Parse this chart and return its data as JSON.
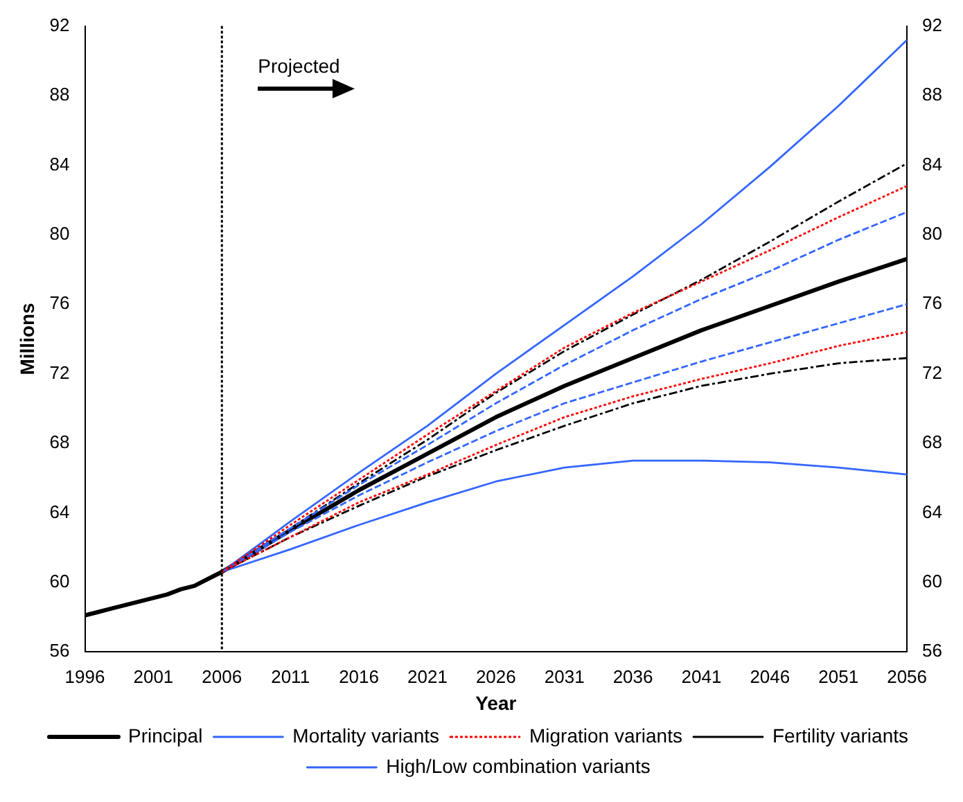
{
  "chart_data": {
    "type": "line",
    "xlabel": "Year",
    "ylabel": "Millions",
    "xlim": [
      1996,
      2056
    ],
    "xticks": [
      1996,
      2001,
      2006,
      2011,
      2016,
      2021,
      2026,
      2031,
      2036,
      2041,
      2046,
      2051,
      2056
    ],
    "ylim": [
      56,
      92
    ],
    "yticks": [
      56,
      60,
      64,
      68,
      72,
      76,
      80,
      84,
      88,
      92
    ],
    "y2lim": [
      56,
      92
    ],
    "y2ticks": [
      56,
      60,
      64,
      68,
      72,
      76,
      80,
      84,
      88,
      92
    ],
    "grid": false,
    "legend": "bottom",
    "marker": "none",
    "ref_lines": [
      {
        "axis": "x",
        "value": 2006,
        "label": "Projected",
        "color": "#000000",
        "line_style": "dotted"
      }
    ],
    "series": [
      {
        "name": "Principal",
        "color": "#000000",
        "line_style": "solid",
        "x": [
          1996,
          1997,
          1998,
          1999,
          2000,
          2001,
          2002,
          2003,
          2004,
          2005,
          2006,
          2011,
          2016,
          2021,
          2026,
          2031,
          2036,
          2041,
          2046,
          2051,
          2056
        ],
        "values": [
          58.1,
          58.3,
          58.5,
          58.7,
          58.9,
          59.1,
          59.3,
          59.6,
          59.8,
          60.2,
          60.6,
          63.0,
          65.3,
          67.4,
          69.5,
          71.3,
          72.9,
          74.5,
          75.9,
          77.3,
          78.6
        ]
      },
      {
        "name": "Mortality variants",
        "color": "#3366ff",
        "line_style": "dashed",
        "x": [
          2006,
          2011,
          2016,
          2021,
          2026,
          2031,
          2036,
          2041,
          2046,
          2051,
          2056
        ],
        "values": [
          60.6,
          63.1,
          65.6,
          67.9,
          70.3,
          72.5,
          74.5,
          76.3,
          77.9,
          79.7,
          81.3
        ]
      },
      {
        "color": "#3366ff",
        "line_style": "dashed",
        "x": [
          2006,
          2011,
          2016,
          2021,
          2026,
          2031,
          2036,
          2041,
          2046,
          2051,
          2056
        ],
        "values": [
          60.6,
          62.9,
          65.0,
          66.9,
          68.7,
          70.3,
          71.5,
          72.7,
          73.8,
          74.9,
          76.0
        ]
      },
      {
        "name": "Migration variants",
        "color": "#ff0000",
        "line_style": "dotted",
        "x": [
          2006,
          2011,
          2016,
          2021,
          2026,
          2031,
          2036,
          2041,
          2046,
          2051,
          2056
        ],
        "values": [
          60.6,
          63.3,
          65.9,
          68.5,
          71.0,
          73.5,
          75.5,
          77.3,
          79.1,
          81.0,
          82.8
        ]
      },
      {
        "color": "#ff0000",
        "line_style": "dotted",
        "x": [
          2006,
          2011,
          2016,
          2021,
          2026,
          2031,
          2036,
          2041,
          2046,
          2051,
          2056
        ],
        "values": [
          60.6,
          62.6,
          64.6,
          66.2,
          67.9,
          69.5,
          70.7,
          71.7,
          72.6,
          73.6,
          74.4
        ]
      },
      {
        "name": "Fertility variants",
        "color": "#000000",
        "line_style": "dashdot",
        "x": [
          2006,
          2011,
          2016,
          2021,
          2026,
          2031,
          2036,
          2041,
          2046,
          2051,
          2056
        ],
        "values": [
          60.6,
          63.1,
          65.7,
          68.2,
          70.9,
          73.3,
          75.4,
          77.4,
          79.6,
          81.9,
          84.1
        ]
      },
      {
        "color": "#000000",
        "line_style": "dashdot",
        "x": [
          2006,
          2011,
          2016,
          2021,
          2026,
          2031,
          2036,
          2041,
          2046,
          2051,
          2056
        ],
        "values": [
          60.6,
          62.6,
          64.4,
          66.1,
          67.6,
          69.0,
          70.3,
          71.3,
          72.0,
          72.6,
          72.9
        ]
      },
      {
        "name": "High/Low combination variants",
        "color": "#3366ff",
        "line_style": "solid",
        "x": [
          2006,
          2011,
          2016,
          2021,
          2026,
          2031,
          2036,
          2041,
          2046,
          2051,
          2056
        ],
        "values": [
          60.6,
          63.5,
          66.3,
          69.0,
          72.0,
          74.8,
          77.6,
          80.6,
          83.9,
          87.4,
          91.2
        ]
      },
      {
        "color": "#3366ff",
        "line_style": "solid",
        "x": [
          2006,
          2011,
          2016,
          2021,
          2026,
          2031,
          2036,
          2041,
          2046,
          2051,
          2056
        ],
        "values": [
          60.6,
          61.9,
          63.3,
          64.6,
          65.8,
          66.6,
          67.0,
          67.0,
          66.9,
          66.6,
          66.2
        ]
      }
    ]
  }
}
